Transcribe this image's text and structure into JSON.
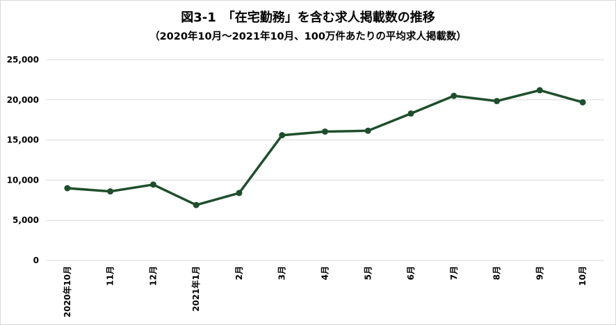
{
  "chart_data": {
    "type": "line",
    "title": "図3-1　「在宅勤務」を含む求人掲載数の推移",
    "subtitle": "（2020年10月～2021年10月、100万件あたりの平均求人掲載数）",
    "xlabel": "",
    "ylabel": "",
    "categories": [
      "2020年10月",
      "11月",
      "12月",
      "2021年1月",
      "2月",
      "3月",
      "4月",
      "5月",
      "6月",
      "7月",
      "8月",
      "9月",
      "10月"
    ],
    "series": [
      {
        "values": [
          9000,
          8600,
          9450,
          6900,
          8400,
          15600,
          16050,
          16150,
          18300,
          20500,
          19850,
          21200,
          19700
        ]
      }
    ],
    "ylim": [
      0,
      25000
    ],
    "yticks": [
      0,
      5000,
      10000,
      15000,
      20000,
      25000
    ],
    "ytick_labels": [
      "0",
      "5,000",
      "10,000",
      "15,000",
      "20,000",
      "25,000"
    ],
    "grid": true,
    "line_color": "#1f4e2c",
    "grid_color": "#d9d9d9"
  }
}
